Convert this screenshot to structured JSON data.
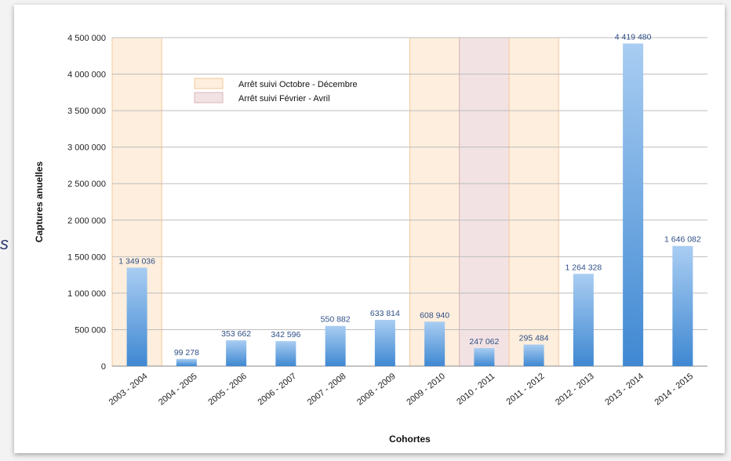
{
  "stray_text": "s",
  "chart_data": {
    "type": "bar",
    "title": "",
    "xlabel": "Cohortes",
    "ylabel": "Captures anuelles",
    "ylim": [
      0,
      4500000
    ],
    "yticks": [
      0,
      500000,
      1000000,
      1500000,
      2000000,
      2500000,
      3000000,
      3500000,
      4000000,
      4500000
    ],
    "ytick_labels": [
      "0",
      "500 000",
      "1 000 000",
      "1 500 000",
      "2 000 000",
      "2 500 000",
      "3 000 000",
      "3 500 000",
      "4 000 000",
      "4 500 000"
    ],
    "grid": true,
    "categories": [
      "2003 - 2004",
      "2004 - 2005",
      "2005 - 2006",
      "2006 - 2007",
      "2007 - 2008",
      "2008 - 2009",
      "2009 - 2010",
      "2010 - 2011",
      "2011 - 2012",
      "2012 - 2013",
      "2013 - 2014",
      "2014 - 2015"
    ],
    "values": [
      1349036,
      99278,
      353662,
      342596,
      550882,
      633814,
      608940,
      247062,
      295484,
      1264328,
      4419480,
      1646082
    ],
    "value_labels": [
      "1 349 036",
      "99 278",
      "353 662",
      "342 596",
      "550 882",
      "633 814",
      "608 940",
      "247 062",
      "295 484",
      "1 264 328",
      "4 419 480",
      "1 646 082"
    ],
    "bar_color": "#5b9bd5",
    "highlights": [
      {
        "category": "2003 - 2004",
        "group": "oct_dec"
      },
      {
        "category": "2009 - 2010",
        "group": "oct_dec"
      },
      {
        "category": "2010 - 2011",
        "group": "feb_apr"
      },
      {
        "category": "2011 - 2012",
        "group": "oct_dec"
      }
    ],
    "legend": {
      "placement": "top-left",
      "entries": [
        {
          "key": "oct_dec",
          "label": "Arrêt suivi Octobre - Décembre",
          "fill": "#fdeedd",
          "stroke": "#f5c89a"
        },
        {
          "key": "feb_apr",
          "label": "Arrêt suivi Février - Avril",
          "fill": "#f2e2e4",
          "stroke": "#dbb4b8"
        }
      ]
    }
  }
}
